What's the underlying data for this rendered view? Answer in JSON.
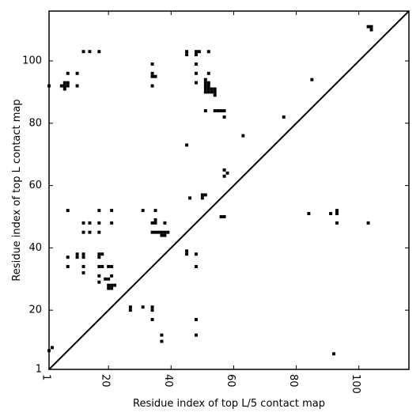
{
  "chart_data": {
    "type": "heatmap",
    "subtype": "contact-map",
    "xlabel": "Residue index of top L/5 contact map",
    "ylabel": "Residue index of top L contact map",
    "xlim": [
      1,
      116
    ],
    "ylim": [
      1,
      116
    ],
    "x_ticks": [
      1,
      20,
      40,
      60,
      80,
      100
    ],
    "y_ticks": [
      1,
      20,
      40,
      60,
      80,
      100
    ],
    "x_tick_labels": [
      "1",
      "20",
      "40",
      "60",
      "80",
      "100"
    ],
    "y_tick_labels": [
      "1",
      "20",
      "40",
      "60",
      "80",
      "100"
    ],
    "x_tick_rotation": -90,
    "diagonal": true,
    "grid": false,
    "marker_color": "#000000",
    "contacts": [
      [
        1,
        7
      ],
      [
        2,
        8
      ],
      [
        1,
        92
      ],
      [
        5,
        92
      ],
      [
        6,
        92
      ],
      [
        6,
        93
      ],
      [
        7,
        92
      ],
      [
        7,
        93
      ],
      [
        6,
        91
      ],
      [
        7,
        96
      ],
      [
        7,
        52
      ],
      [
        7,
        37
      ],
      [
        7,
        34
      ],
      [
        10,
        96
      ],
      [
        10,
        92
      ],
      [
        10,
        38
      ],
      [
        10,
        37
      ],
      [
        12,
        103
      ],
      [
        12,
        48
      ],
      [
        12,
        45
      ],
      [
        12,
        38
      ],
      [
        12,
        37
      ],
      [
        12,
        34
      ],
      [
        12,
        32
      ],
      [
        14,
        103
      ],
      [
        14,
        48
      ],
      [
        14,
        45
      ],
      [
        17,
        103
      ],
      [
        17,
        52
      ],
      [
        17,
        48
      ],
      [
        17,
        45
      ],
      [
        17,
        38
      ],
      [
        17,
        37
      ],
      [
        17,
        34
      ],
      [
        17,
        31
      ],
      [
        17,
        29
      ],
      [
        18,
        38
      ],
      [
        18,
        34
      ],
      [
        19,
        30
      ],
      [
        20,
        34
      ],
      [
        20,
        30
      ],
      [
        20,
        28
      ],
      [
        20,
        27
      ],
      [
        21,
        52
      ],
      [
        21,
        48
      ],
      [
        21,
        34
      ],
      [
        21,
        31
      ],
      [
        21,
        28
      ],
      [
        21,
        27
      ],
      [
        22,
        28
      ],
      [
        27,
        21
      ],
      [
        27,
        20
      ],
      [
        31,
        52
      ],
      [
        31,
        21
      ],
      [
        34,
        99
      ],
      [
        34,
        96
      ],
      [
        34,
        95
      ],
      [
        34,
        92
      ],
      [
        34,
        48
      ],
      [
        34,
        45
      ],
      [
        34,
        21
      ],
      [
        34,
        20
      ],
      [
        34,
        17
      ],
      [
        35,
        95
      ],
      [
        35,
        52
      ],
      [
        35,
        49
      ],
      [
        35,
        48
      ],
      [
        35,
        45
      ],
      [
        36,
        45
      ],
      [
        37,
        45
      ],
      [
        37,
        44
      ],
      [
        37,
        12
      ],
      [
        37,
        10
      ],
      [
        38,
        48
      ],
      [
        38,
        45
      ],
      [
        38,
        44
      ],
      [
        39,
        45
      ],
      [
        45,
        103
      ],
      [
        45,
        102
      ],
      [
        45,
        73
      ],
      [
        45,
        39
      ],
      [
        45,
        38
      ],
      [
        46,
        56
      ],
      [
        48,
        103
      ],
      [
        48,
        102
      ],
      [
        48,
        99
      ],
      [
        48,
        96
      ],
      [
        48,
        93
      ],
      [
        48,
        38
      ],
      [
        48,
        34
      ],
      [
        48,
        17
      ],
      [
        48,
        12
      ],
      [
        49,
        103
      ],
      [
        50,
        57
      ],
      [
        50,
        56
      ],
      [
        51,
        57
      ],
      [
        51,
        84
      ],
      [
        51,
        94
      ],
      [
        51,
        93
      ],
      [
        51,
        92
      ],
      [
        51,
        91
      ],
      [
        51,
        90
      ],
      [
        52,
        103
      ],
      [
        52,
        96
      ],
      [
        52,
        93
      ],
      [
        52,
        92
      ],
      [
        52,
        91
      ],
      [
        52,
        90
      ],
      [
        53,
        91
      ],
      [
        53,
        90
      ],
      [
        54,
        91
      ],
      [
        54,
        90
      ],
      [
        54,
        89
      ],
      [
        54,
        84
      ],
      [
        55,
        84
      ],
      [
        56,
        84
      ],
      [
        56,
        50
      ],
      [
        57,
        84
      ],
      [
        57,
        82
      ],
      [
        57,
        65
      ],
      [
        57,
        63
      ],
      [
        57,
        50
      ],
      [
        58,
        64
      ],
      [
        63,
        76
      ],
      [
        76,
        82
      ],
      [
        84,
        51
      ],
      [
        85,
        94
      ],
      [
        91,
        51
      ],
      [
        92,
        6
      ],
      [
        93,
        52
      ],
      [
        93,
        51
      ],
      [
        93,
        48
      ],
      [
        103,
        48
      ],
      [
        103,
        111
      ],
      [
        104,
        111
      ],
      [
        104,
        110
      ]
    ]
  }
}
